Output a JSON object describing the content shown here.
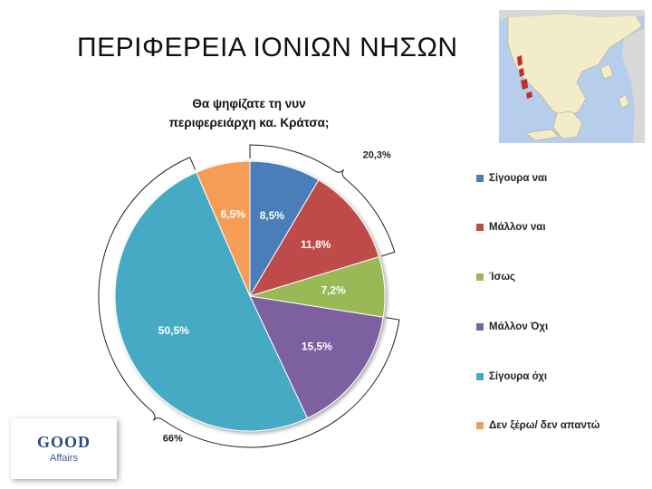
{
  "slide": {
    "title": "ΠΕΡΙΦΕΡΕΙΑ ΙΟΝΙΩΝ ΝΗΣΩΝ"
  },
  "logo": {
    "main": "GOOD",
    "sub": "Affairs"
  },
  "map": {
    "region_color": "#c0302a",
    "greece_color": "#f3ecc9",
    "sea_color": "#b7cdec"
  },
  "chart_data": {
    "type": "pie",
    "title_lines": [
      "Θα ψηφίζατε τη νυν",
      "περιφερειάρχη κα. Κράτσα;"
    ],
    "categories": [
      "Σίγουρα ναι",
      "Μάλλον ναι",
      "Ίσως",
      "Μάλλον Όχι",
      "Σίγουρα όχι",
      "Δεν ξέρω/ δεν απαντώ"
    ],
    "values": [
      8.5,
      11.8,
      7.2,
      15.5,
      50.5,
      6.5
    ],
    "labels": [
      "8,5%",
      "11,8%",
      "7,2%",
      "15,5%",
      "50,5%",
      "6,5%"
    ],
    "colors": [
      "#4a7ebb",
      "#be4b48",
      "#98b954",
      "#7d60a0",
      "#46aac5",
      "#f59d56"
    ],
    "legend_position": "right",
    "annotations": [
      {
        "text": "20,3%",
        "spans": [
          "Σίγουρα ναι",
          "Μάλλον ναι"
        ]
      },
      {
        "text": "66%",
        "spans": [
          "Μάλλον Όχι",
          "Σίγουρα όχι"
        ]
      }
    ]
  }
}
